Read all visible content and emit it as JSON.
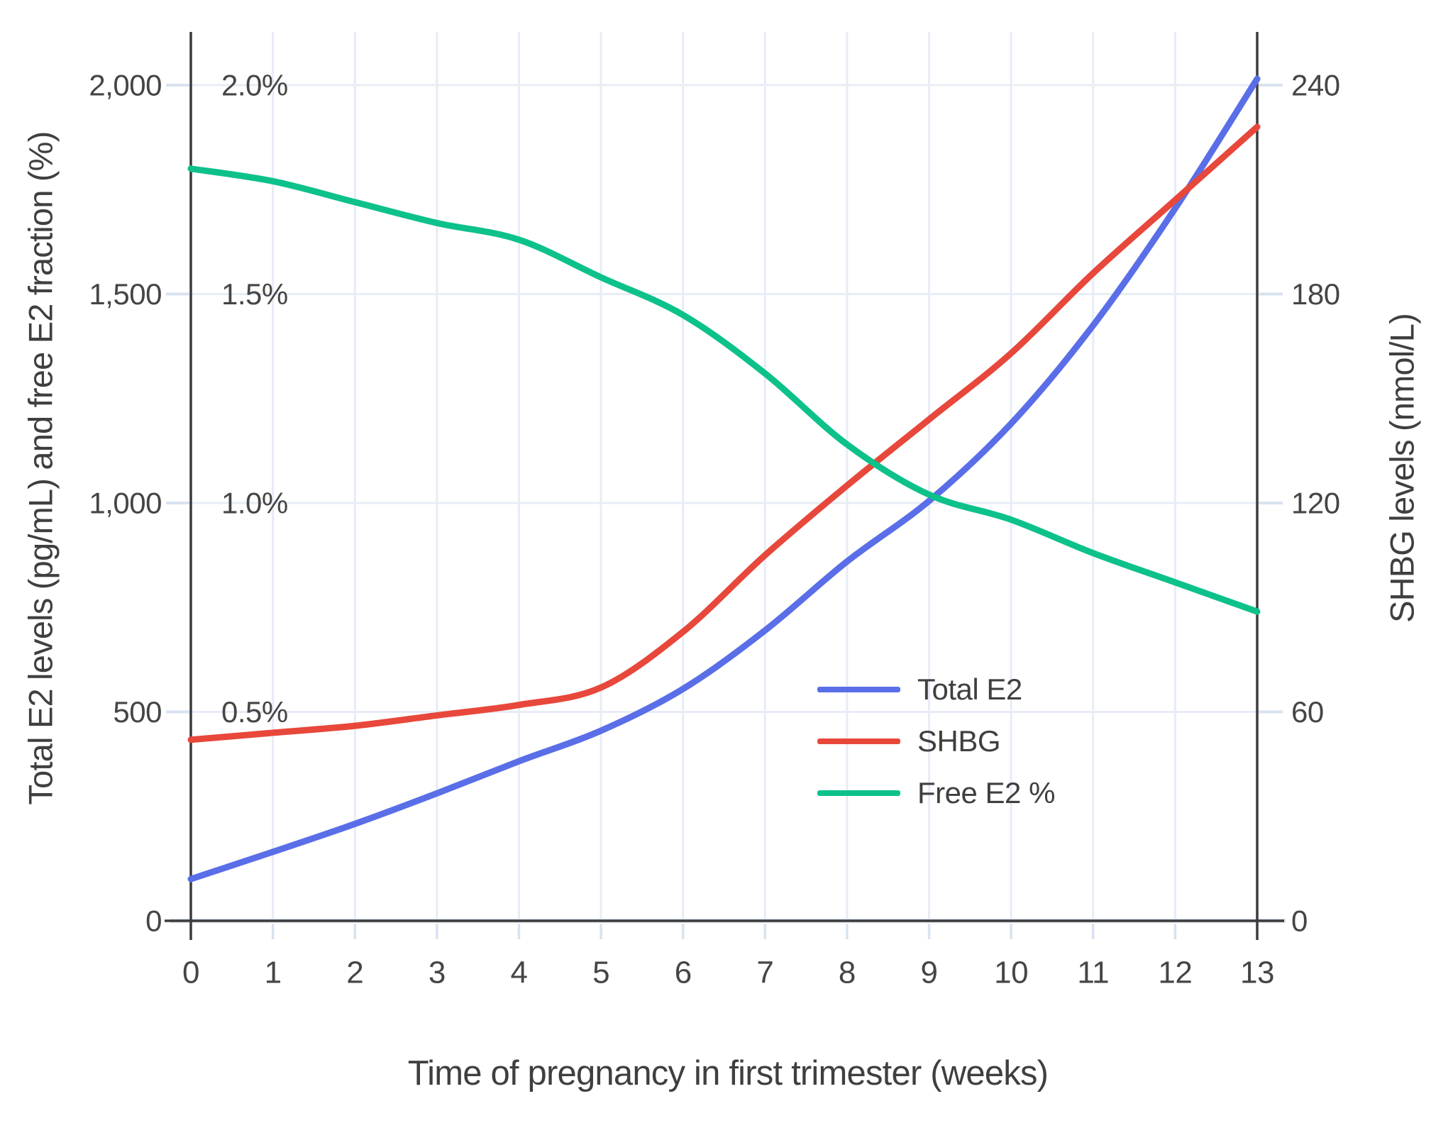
{
  "chart_data": {
    "type": "line",
    "title": "",
    "xlabel": "Time of pregnancy in first trimester (weeks)",
    "ylabel_left": "Total E2 levels (pg/mL) and free E2 fraction (%)",
    "ylabel_right": "SHBG levels (nmol/L)",
    "x": [
      0,
      1,
      2,
      3,
      4,
      5,
      6,
      7,
      8,
      9,
      10,
      11,
      12,
      13
    ],
    "x_tick_labels": [
      "0",
      "1",
      "2",
      "3",
      "4",
      "5",
      "6",
      "7",
      "8",
      "9",
      "10",
      "11",
      "12",
      "13"
    ],
    "left_axis": {
      "range": [
        0,
        2000
      ],
      "ticks": [
        {
          "label": "0",
          "value": 0
        },
        {
          "label": "500",
          "value": 500
        },
        {
          "label": "1,000",
          "value": 1000
        },
        {
          "label": "1,500",
          "value": 1500
        },
        {
          "label": "2,000",
          "value": 2000
        }
      ],
      "percent_ticks": [
        {
          "label": "0.5%",
          "value": 500
        },
        {
          "label": "1.0%",
          "value": 1000
        },
        {
          "label": "1.5%",
          "value": 1500
        },
        {
          "label": "2.0%",
          "value": 2000
        }
      ]
    },
    "right_axis": {
      "range": [
        0,
        240
      ],
      "ticks": [
        {
          "label": "0",
          "value": 0
        },
        {
          "label": "60",
          "value": 60
        },
        {
          "label": "120",
          "value": 120
        },
        {
          "label": "180",
          "value": 180
        },
        {
          "label": "240",
          "value": 240
        }
      ]
    },
    "series": [
      {
        "name": "Total E2",
        "axis": "left",
        "unit": "pg/mL",
        "color": "#5a6ee8",
        "values": [
          100,
          165,
          232,
          305,
          382,
          455,
          555,
          695,
          860,
          1005,
          1190,
          1425,
          1705,
          2015
        ]
      },
      {
        "name": "SHBG",
        "axis": "right",
        "unit": "nmol/L",
        "color": "#e8473b",
        "values": [
          52,
          54,
          56,
          59,
          62,
          67,
          83,
          105,
          125,
          144,
          163,
          186,
          207,
          228
        ]
      },
      {
        "name": "Free E2 %",
        "axis": "left_percent",
        "unit": "%",
        "color": "#0dc18b",
        "values": [
          1.8,
          1.77,
          1.72,
          1.67,
          1.63,
          1.54,
          1.45,
          1.31,
          1.14,
          1.02,
          0.96,
          0.88,
          0.81,
          0.74
        ]
      }
    ],
    "legend_position": "inside lower right",
    "grid": true,
    "colors": {
      "grid": "#e7ecf6",
      "tick_stub": "#d9e2f1",
      "axis": "#3b3b3b",
      "text": "#454545"
    }
  }
}
